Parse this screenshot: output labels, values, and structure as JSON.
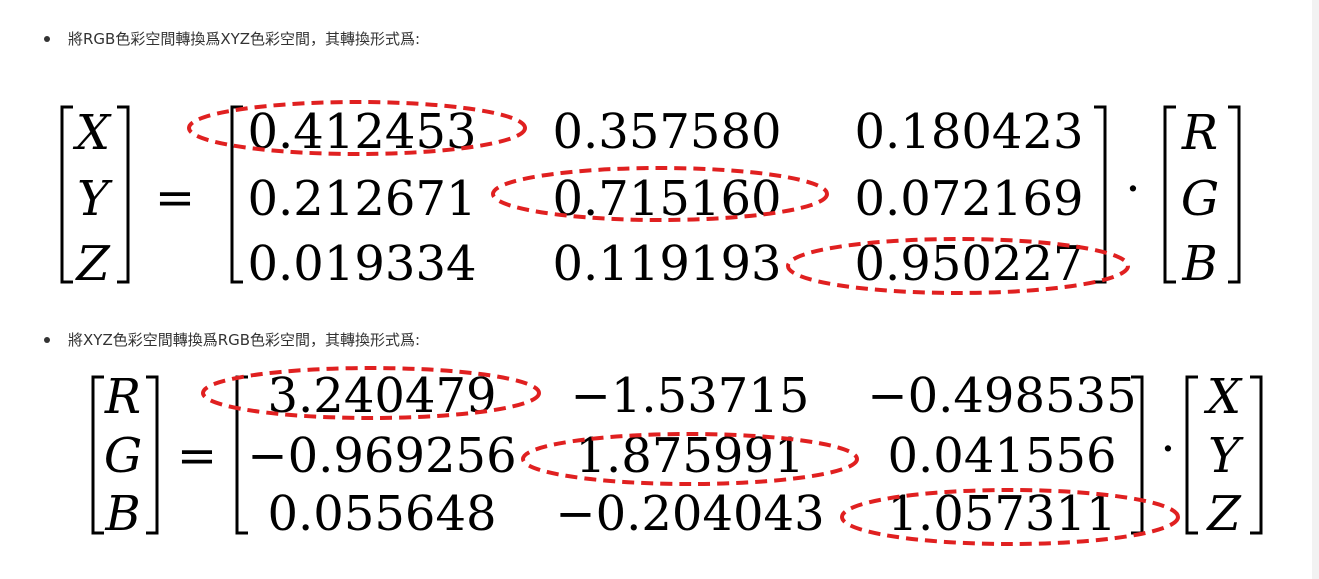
{
  "bullets": [
    "將RGB色彩空間轉換爲XYZ色彩空間，其轉換形式爲:",
    "將XYZ色彩空間轉換爲RGB色彩空間，其轉換形式爲:"
  ],
  "equation1": {
    "lhs": [
      "X",
      "Y",
      "Z"
    ],
    "equals": "=",
    "matrix": [
      [
        "0.412453",
        "0.357580",
        "0.180423"
      ],
      [
        "0.212671",
        "0.715160",
        "0.072169"
      ],
      [
        "0.019334",
        "0.119193",
        "0.950227"
      ]
    ],
    "dot": "·",
    "rhs": [
      "R",
      "G",
      "B"
    ]
  },
  "equation2": {
    "lhs": [
      "R",
      "G",
      "B"
    ],
    "equals": "=",
    "matrix": [
      [
        "3.240479",
        "−1.53715",
        "−0.498535"
      ],
      [
        "−0.969256",
        "1.875991",
        "0.041556"
      ],
      [
        "0.055648",
        "−0.204043",
        "1.057311"
      ]
    ],
    "dot": "·",
    "rhs": [
      "X",
      "Y",
      "Z"
    ]
  },
  "annotation_color": "#e02020"
}
